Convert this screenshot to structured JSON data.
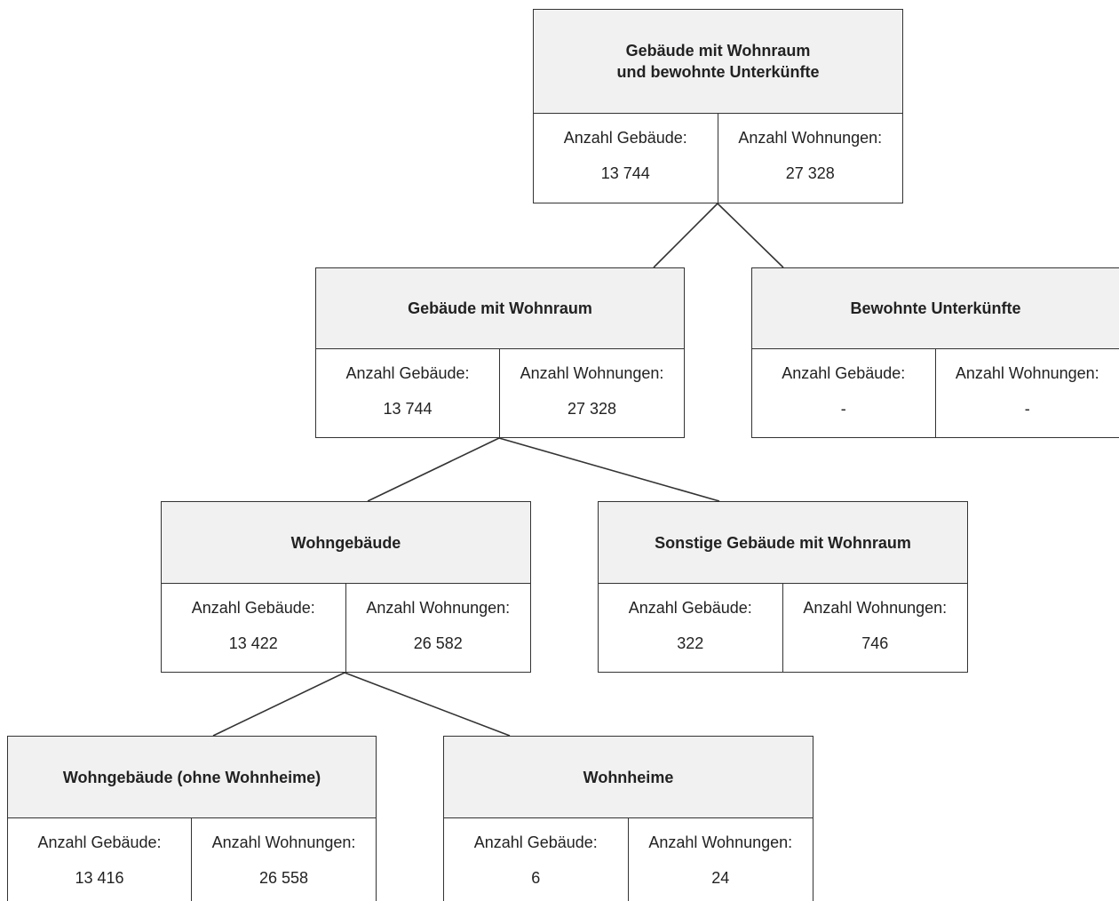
{
  "nodes": {
    "root": {
      "title": "Gebäude mit Wohnraum\nund bewohnte Unterkünfte",
      "gebaeude_label": "Anzahl Gebäude:",
      "gebaeude_value": "13 744",
      "wohnungen_label": "Anzahl Wohnungen:",
      "wohnungen_value": "27 328"
    },
    "wohnraum": {
      "title": "Gebäude mit Wohnraum",
      "gebaeude_label": "Anzahl Gebäude:",
      "gebaeude_value": "13 744",
      "wohnungen_label": "Anzahl Wohnungen:",
      "wohnungen_value": "27 328"
    },
    "unterkuenfte": {
      "title": "Bewohnte Unterkünfte",
      "gebaeude_label": "Anzahl Gebäude:",
      "gebaeude_value": "-",
      "wohnungen_label": "Anzahl Wohnungen:",
      "wohnungen_value": "-"
    },
    "wohngebaeude": {
      "title": "Wohngebäude",
      "gebaeude_label": "Anzahl Gebäude:",
      "gebaeude_value": "13 422",
      "wohnungen_label": "Anzahl Wohnungen:",
      "wohnungen_value": "26 582"
    },
    "sonstige": {
      "title": "Sonstige Gebäude mit Wohnraum",
      "gebaeude_label": "Anzahl Gebäude:",
      "gebaeude_value": "322",
      "wohnungen_label": "Anzahl Wohnungen:",
      "wohnungen_value": "746"
    },
    "ohne_wohnheime": {
      "title": "Wohngebäude (ohne Wohnheime)",
      "gebaeude_label": "Anzahl Gebäude:",
      "gebaeude_value": "13 416",
      "wohnungen_label": "Anzahl Wohnungen:",
      "wohnungen_value": "26 558"
    },
    "wohnheime": {
      "title": "Wohnheime",
      "gebaeude_label": "Anzahl Gebäude:",
      "gebaeude_value": "6",
      "wohnungen_label": "Anzahl Wohnungen:",
      "wohnungen_value": "24"
    }
  },
  "edges": [
    {
      "from": "root",
      "to": "wohnraum"
    },
    {
      "from": "root",
      "to": "unterkuenfte"
    },
    {
      "from": "wohnraum",
      "to": "wohngebaeude"
    },
    {
      "from": "wohnraum",
      "to": "sonstige"
    },
    {
      "from": "wohngebaeude",
      "to": "ohne_wohnheime"
    },
    {
      "from": "wohngebaeude",
      "to": "wohnheime"
    }
  ],
  "colors": {
    "header_fill": "#f1f1f2",
    "border": "#333333",
    "text": "#222222"
  }
}
